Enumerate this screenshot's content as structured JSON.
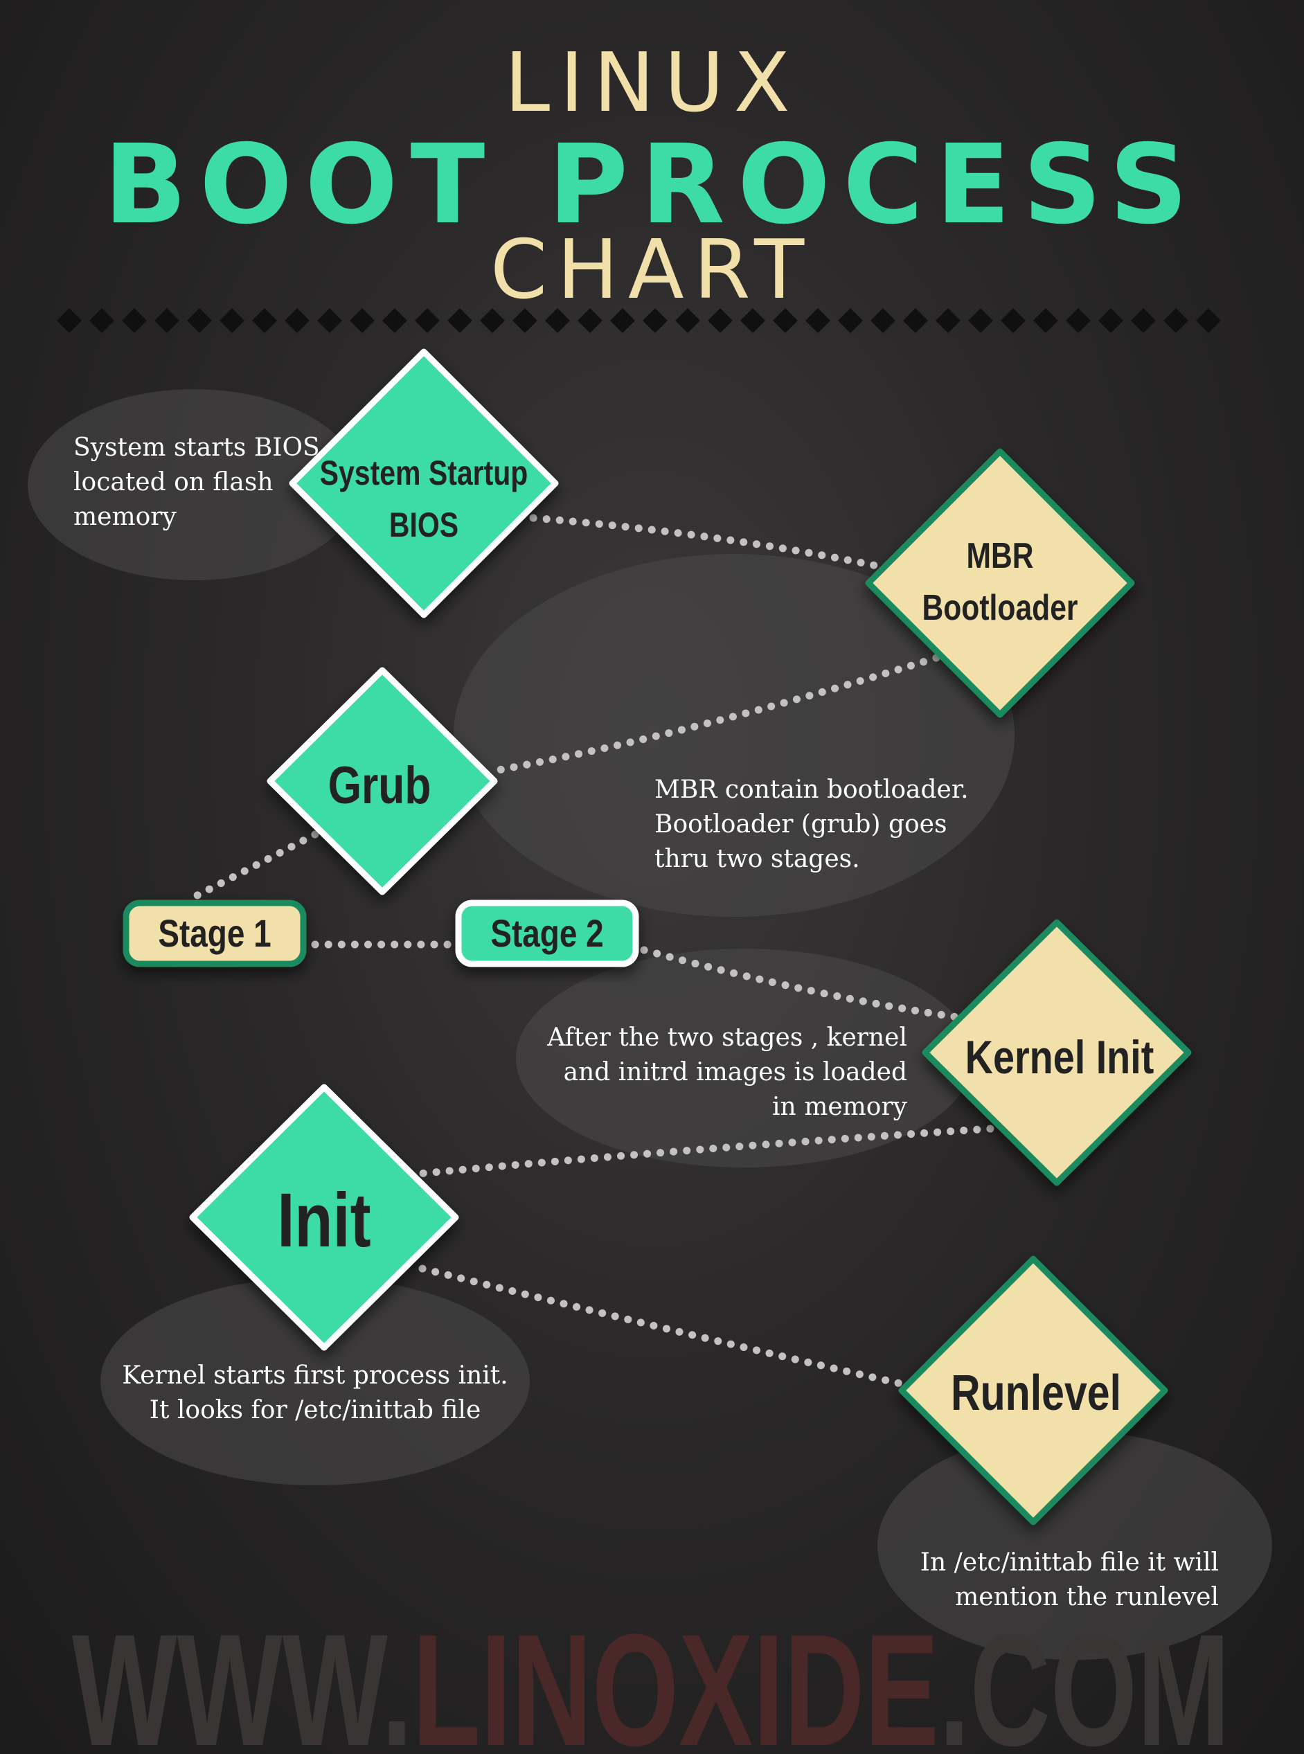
{
  "title": {
    "line1": "LINUX",
    "line2": "BOOT PROCESS",
    "line3": "CHART"
  },
  "colors": {
    "teal": "#3ddba6",
    "cream": "#f1e0a9",
    "border_green": "#1a8a5e",
    "text_dark": "#222222",
    "note_text": "#ffffff",
    "bubble": "#4a4848",
    "watermark": "#4a2828"
  },
  "nodes": {
    "bios": {
      "lines": [
        "System Startup",
        "BIOS"
      ],
      "style": "teal"
    },
    "mbr": {
      "lines": [
        "MBR",
        "Bootloader"
      ],
      "style": "cream"
    },
    "grub": {
      "lines": [
        "Grub"
      ],
      "style": "teal"
    },
    "kernel": {
      "lines": [
        "Kernel Init"
      ],
      "style": "cream"
    },
    "init": {
      "lines": [
        "Init"
      ],
      "style": "teal"
    },
    "runlevel": {
      "lines": [
        "Runlevel"
      ],
      "style": "cream"
    }
  },
  "stages": {
    "stage1": {
      "label": "Stage 1",
      "style": "cream"
    },
    "stage2": {
      "label": "Stage 2",
      "style": "teal"
    }
  },
  "notes": {
    "bios": "System starts BIOS\nlocated on flash\nmemory",
    "mbr": "MBR contain bootloader.\nBootloader (grub) goes\nthru two stages.",
    "kernel": "After the two stages , kernel\nand initrd images is loaded\nin memory",
    "init": "Kernel starts first process init.\nIt looks for /etc/inittab file",
    "runlevel": "In /etc/inittab file it will\nmention the runlevel"
  },
  "watermark": {
    "prefix": "WWW.",
    "brand": "LINOXIDE",
    "suffix": ".COM"
  }
}
